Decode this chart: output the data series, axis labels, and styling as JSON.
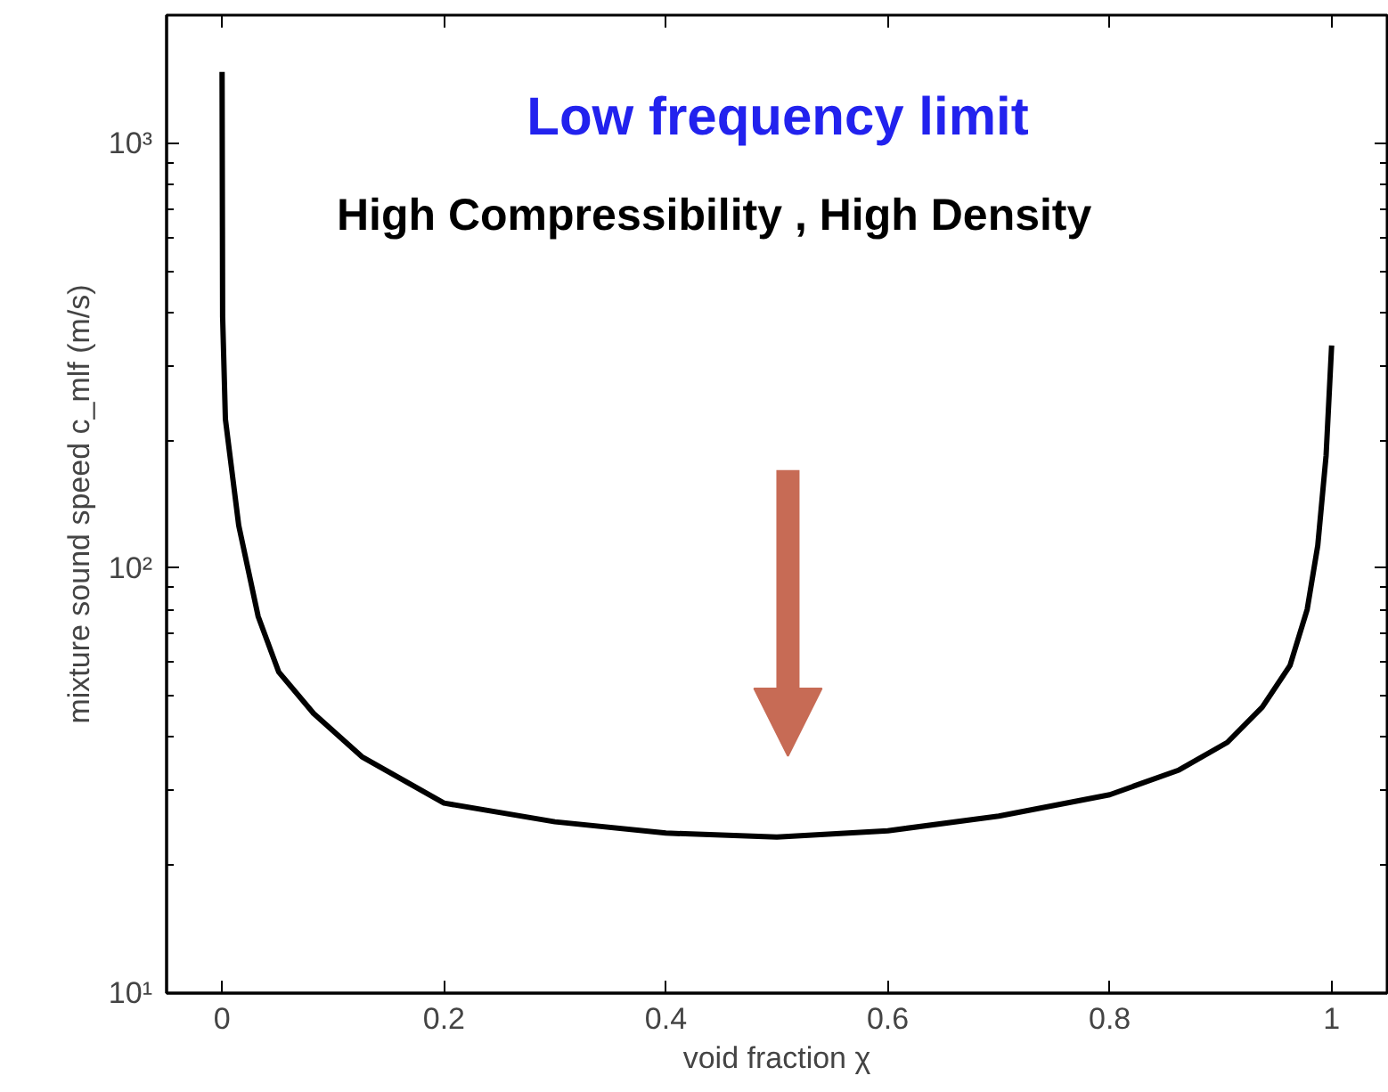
{
  "chart_data": {
    "type": "line",
    "xlabel": "void fraction χ",
    "ylabel": "mixture sound speed c_mlf (m/s)",
    "annotations": [
      "Low frequency limit",
      "High Compressibility , High Density"
    ],
    "log": "y",
    "xlim": [
      -0.05,
      1.05
    ],
    "ylim": [
      10,
      2000
    ],
    "xticks": [
      0,
      0.2,
      0.4,
      0.6,
      0.8,
      1
    ],
    "yticks": [
      {
        "value": 10,
        "label": "10¹"
      },
      {
        "value": 100,
        "label": "10²"
      },
      {
        "value": 1000,
        "label": "10³"
      }
    ],
    "grid": false,
    "series": [
      {
        "color": "#000000",
        "x": [
          0,
          0.0005,
          0.003,
          0.015,
          0.0325,
          0.051,
          0.0825,
          0.126,
          0.2,
          0.3,
          0.4,
          0.5,
          0.6,
          0.7,
          0.8,
          0.8625,
          0.906,
          0.9375,
          0.9625,
          0.978,
          0.9875,
          0.995,
          1.0
        ],
        "values": [
          1470,
          390,
          224,
          126,
          77,
          57,
          45.5,
          36,
          28,
          25.3,
          23.8,
          23.3,
          24.1,
          26.1,
          29.3,
          33.5,
          38.9,
          47.1,
          59,
          80,
          113,
          184,
          334
        ]
      }
    ]
  }
}
